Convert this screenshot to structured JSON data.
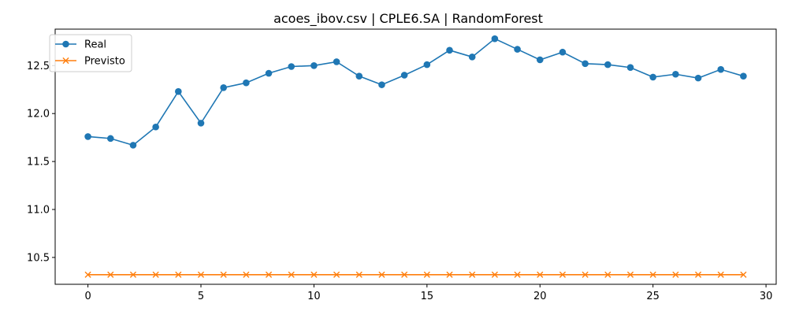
{
  "chart_data": {
    "type": "line",
    "title": "acoes_ibov.csv | CPLE6.SA | RandomForest",
    "xlabel": "",
    "ylabel": "",
    "xlim": [
      -1.45,
      30.45
    ],
    "ylim": [
      10.22,
      12.88
    ],
    "x_ticks": [
      0,
      5,
      10,
      15,
      20,
      25,
      30
    ],
    "y_ticks": [
      10.5,
      11.0,
      11.5,
      12.0,
      12.5
    ],
    "x_tick_labels": [
      "0",
      "5",
      "10",
      "15",
      "20",
      "25",
      "30"
    ],
    "y_tick_labels": [
      "10.5",
      "11.0",
      "11.5",
      "12.0",
      "12.5"
    ],
    "grid": false,
    "legend_position": "top-left",
    "x": [
      0,
      1,
      2,
      3,
      4,
      5,
      6,
      7,
      8,
      9,
      10,
      11,
      12,
      13,
      14,
      15,
      16,
      17,
      18,
      19,
      20,
      21,
      22,
      23,
      24,
      25,
      26,
      27,
      28,
      29
    ],
    "series": [
      {
        "name": "Real",
        "color": "#1f77b4",
        "marker": "circle",
        "values": [
          11.76,
          11.74,
          11.67,
          11.86,
          12.23,
          11.9,
          12.27,
          12.32,
          12.42,
          12.49,
          12.5,
          12.54,
          12.39,
          12.3,
          12.4,
          12.51,
          12.66,
          12.59,
          12.78,
          12.67,
          12.56,
          12.64,
          12.52,
          12.51,
          12.48,
          12.38,
          12.41,
          12.37,
          12.46,
          12.39
        ]
      },
      {
        "name": "Previsto",
        "color": "#ff7f0e",
        "marker": "x",
        "values": [
          10.32,
          10.32,
          10.32,
          10.32,
          10.32,
          10.32,
          10.32,
          10.32,
          10.32,
          10.32,
          10.32,
          10.32,
          10.32,
          10.32,
          10.32,
          10.32,
          10.32,
          10.32,
          10.32,
          10.32,
          10.32,
          10.32,
          10.32,
          10.32,
          10.32,
          10.32,
          10.32,
          10.32,
          10.32,
          10.32
        ]
      }
    ]
  }
}
